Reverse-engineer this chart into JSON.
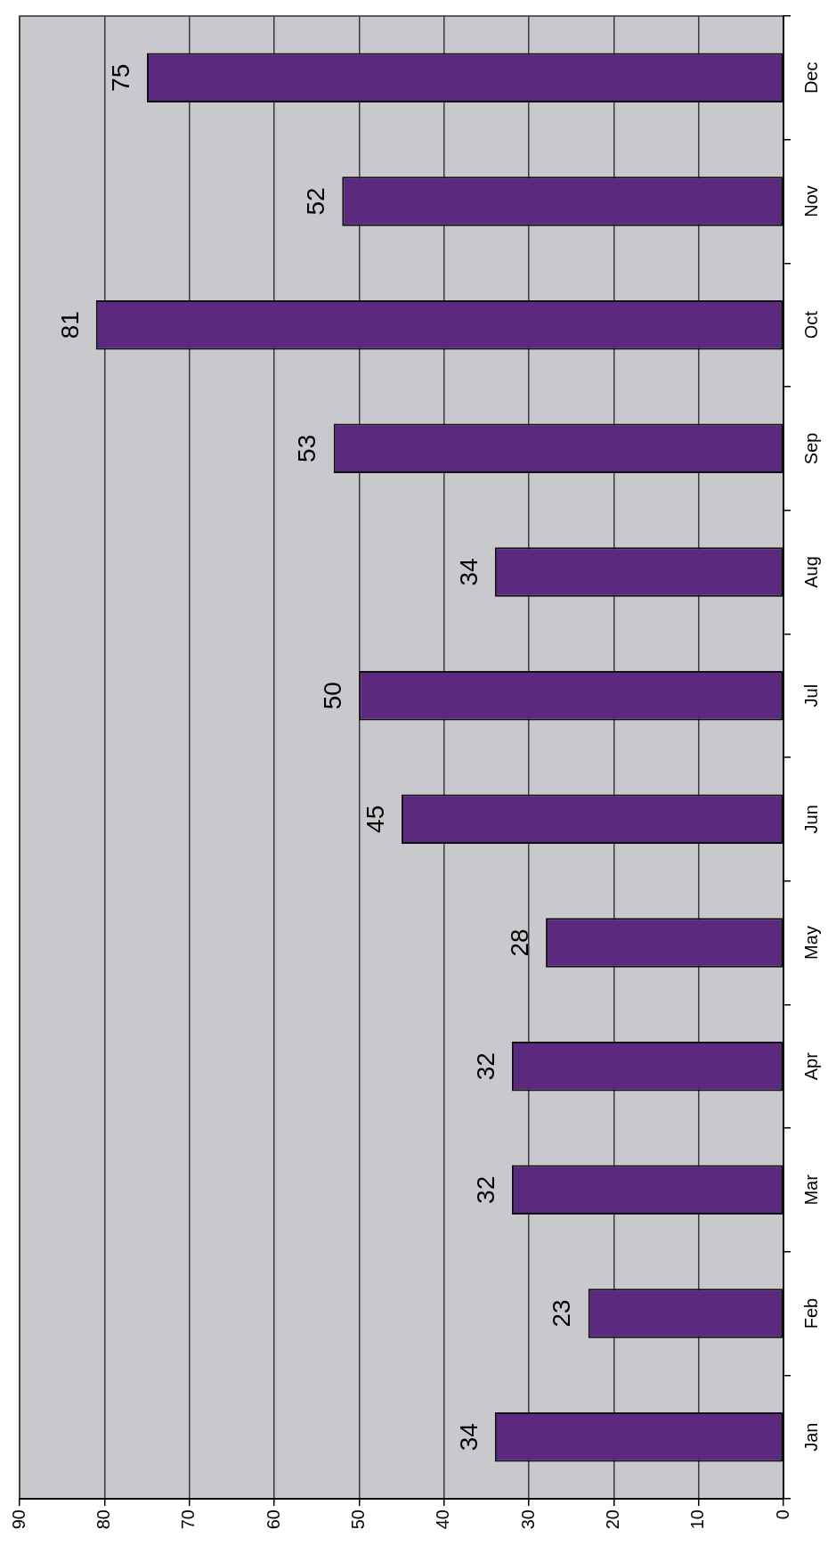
{
  "chart_data": {
    "type": "bar",
    "orientation": "horizontal",
    "categories": [
      "Dec",
      "Nov",
      "Oct",
      "Sep",
      "Aug",
      "Jul",
      "Jun",
      "May",
      "Apr",
      "Mar",
      "Feb",
      "Jan"
    ],
    "values": [
      75,
      52,
      81,
      53,
      34,
      50,
      45,
      28,
      32,
      32,
      23,
      34
    ],
    "color": "#5b2a7e",
    "xlim": [
      90,
      0
    ],
    "xticks": [
      0,
      10,
      20,
      30,
      40,
      50,
      60,
      70,
      80,
      90
    ],
    "grid": "x",
    "data_labels": true
  }
}
